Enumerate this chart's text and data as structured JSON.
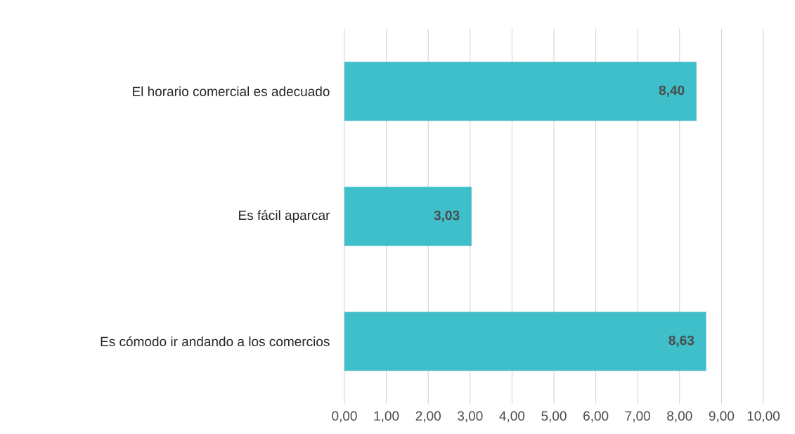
{
  "chart_data": {
    "type": "bar",
    "orientation": "horizontal",
    "categories": [
      "El horario comercial es adecuado",
      "Es fácil aparcar",
      "Es cómodo ir andando a los comercios"
    ],
    "values": [
      8.4,
      3.03,
      8.63
    ],
    "value_labels": [
      "8,40",
      "3,03",
      "8,63"
    ],
    "color": "#3fbfca",
    "xlim": [
      0,
      10
    ],
    "xticks": [
      {
        "value": 0,
        "label": "0,00"
      },
      {
        "value": 1,
        "label": "1,00"
      },
      {
        "value": 2,
        "label": "2,00"
      },
      {
        "value": 3,
        "label": "3,00"
      },
      {
        "value": 4,
        "label": "4,00"
      },
      {
        "value": 5,
        "label": "5,00"
      },
      {
        "value": 6,
        "label": "6,00"
      },
      {
        "value": 7,
        "label": "7,00"
      },
      {
        "value": 8,
        "label": "8,00"
      },
      {
        "value": 9,
        "label": "9,00"
      },
      {
        "value": 10,
        "label": "10,00"
      }
    ],
    "grid": "x"
  }
}
